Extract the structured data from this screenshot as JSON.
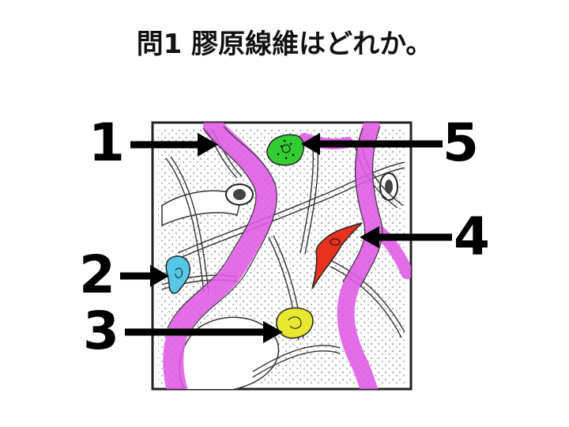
{
  "question": {
    "text": "問1 膠原線維はどれか。"
  },
  "labels": {
    "label_1": "1",
    "label_2": "2",
    "label_3": "3",
    "label_4": "4",
    "label_5": "5"
  },
  "colors": {
    "collagen_fiber": "#e05ae6",
    "cell_5": "#33cc33",
    "cell_2": "#55c8e8",
    "cell_3": "#e8e830",
    "cell_4": "#e8321e",
    "frame": "#222222"
  }
}
